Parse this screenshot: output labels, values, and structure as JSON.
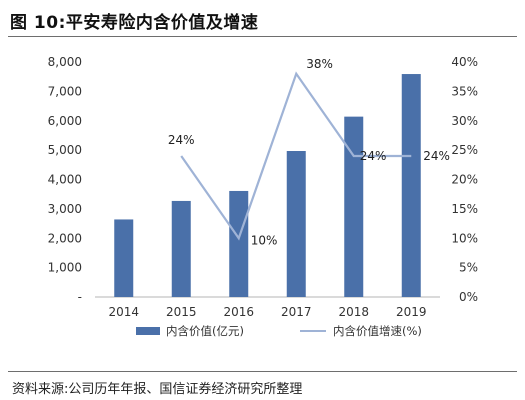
{
  "figure": {
    "title": "图 10:平安寿险内含价值及增速",
    "source": "资料来源:公司历年年报、国信证券经济研究所整理"
  },
  "chart_data": {
    "type": "bar",
    "categories": [
      "2014",
      "2015",
      "2016",
      "2017",
      "2018",
      "2019"
    ],
    "series": [
      {
        "name": "内含价值(亿元)",
        "type": "bar",
        "axis": "left",
        "color": "#4a70a9",
        "values": [
          2640,
          3270,
          3610,
          4970,
          6140,
          7590
        ]
      },
      {
        "name": "内含价值增速(%)",
        "type": "line",
        "axis": "right",
        "color": "#9fb3d6",
        "values": [
          null,
          24,
          10,
          38,
          24,
          24
        ],
        "data_labels": [
          "",
          "24%",
          "10%",
          "38%",
          "24%",
          "24%"
        ]
      }
    ],
    "y_left": {
      "ylim": [
        0,
        8000
      ],
      "ticks": [
        0,
        1000,
        2000,
        3000,
        4000,
        5000,
        6000,
        7000,
        8000
      ],
      "tick_labels": [
        "-",
        "1,000",
        "2,000",
        "3,000",
        "4,000",
        "5,000",
        "6,000",
        "7,000",
        "8,000"
      ]
    },
    "y_right": {
      "ylim": [
        0,
        40
      ],
      "ticks": [
        0,
        5,
        10,
        15,
        20,
        25,
        30,
        35,
        40
      ],
      "tick_labels": [
        "0%",
        "5%",
        "10%",
        "15%",
        "20%",
        "25%",
        "30%",
        "35%",
        "40%"
      ]
    },
    "grid": false,
    "legend_position": "bottom"
  }
}
